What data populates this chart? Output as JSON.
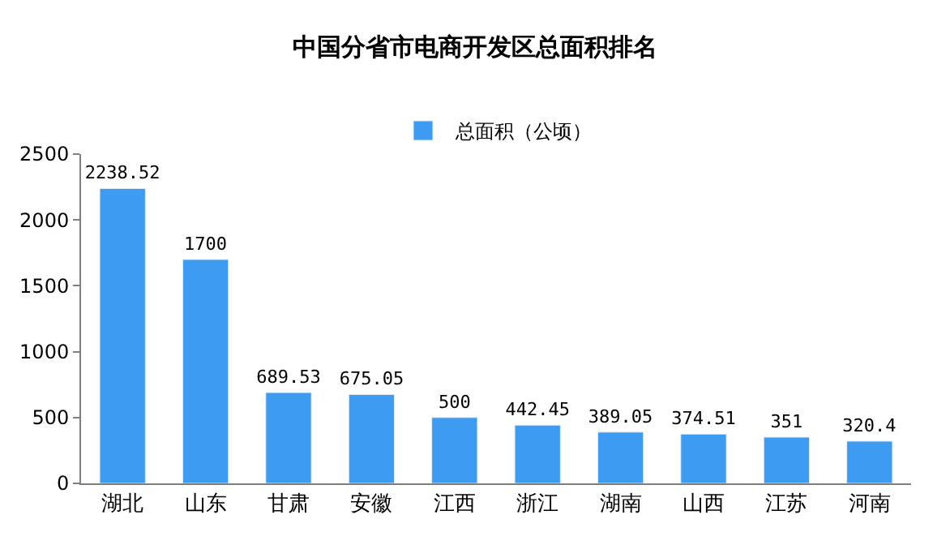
{
  "chart_data": {
    "type": "bar",
    "title": "中国分省市电商开发区总面积排名",
    "categories": [
      "湖北",
      "山东",
      "甘肃",
      "安徽",
      "江西",
      "浙江",
      "湖南",
      "山西",
      "江苏",
      "河南"
    ],
    "series": [
      {
        "name": "总面积（公顷）",
        "color": "#3d9cf2",
        "values": [
          2238.52,
          1700,
          689.53,
          675.05,
          500,
          442.45,
          389.05,
          374.51,
          351,
          320.4
        ]
      }
    ],
    "ylim": [
      0,
      2500
    ],
    "yticks": [
      0,
      500,
      1000,
      1500,
      2000,
      2500
    ],
    "legend": "top",
    "data_labels": true
  }
}
